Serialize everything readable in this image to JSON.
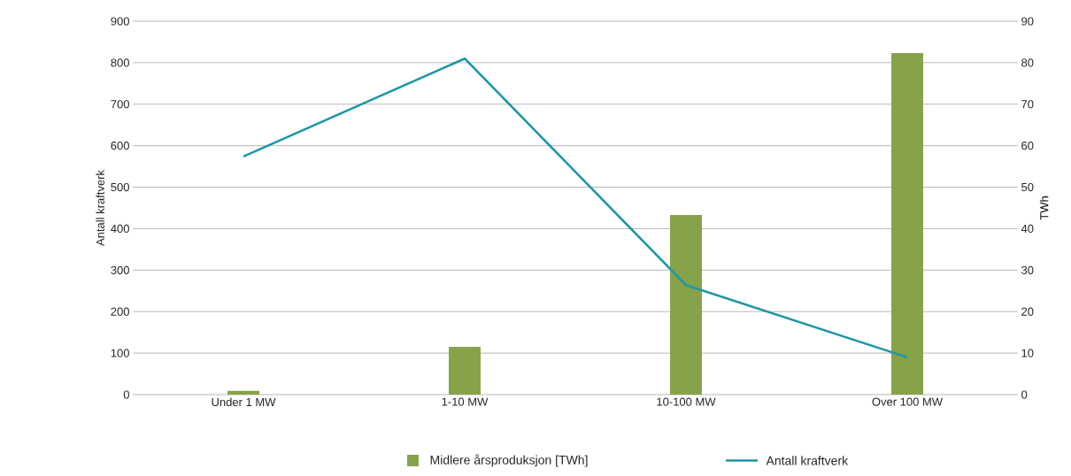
{
  "chart_data": {
    "type": "bar",
    "ylabel": "Antall kraftverk",
    "y2label": "TWh",
    "categories": [
      "Under 1 MW",
      "1-10 MW",
      "10-100 MW",
      "Over 100 MW"
    ],
    "series": [
      {
        "name": "Midlere årsproduksjon [TWh]",
        "axis": "y2",
        "color": "#86a34a",
        "values": [
          0.9,
          11.5,
          43.3,
          82.3
        ]
      },
      {
        "name": "Antall kraftverk",
        "type": "line",
        "axis": "y",
        "color": "#1d97a6",
        "values": [
          574,
          810,
          264,
          90
        ]
      }
    ],
    "ylim": [
      0,
      900
    ],
    "yticks": [
      0,
      100,
      200,
      300,
      400,
      500,
      600,
      700,
      800,
      900
    ],
    "y2lim": [
      0,
      90
    ],
    "y2ticks": [
      0,
      10,
      20,
      30,
      40,
      50,
      60,
      70,
      80,
      90
    ],
    "grid": "y",
    "legend": "bottom"
  }
}
